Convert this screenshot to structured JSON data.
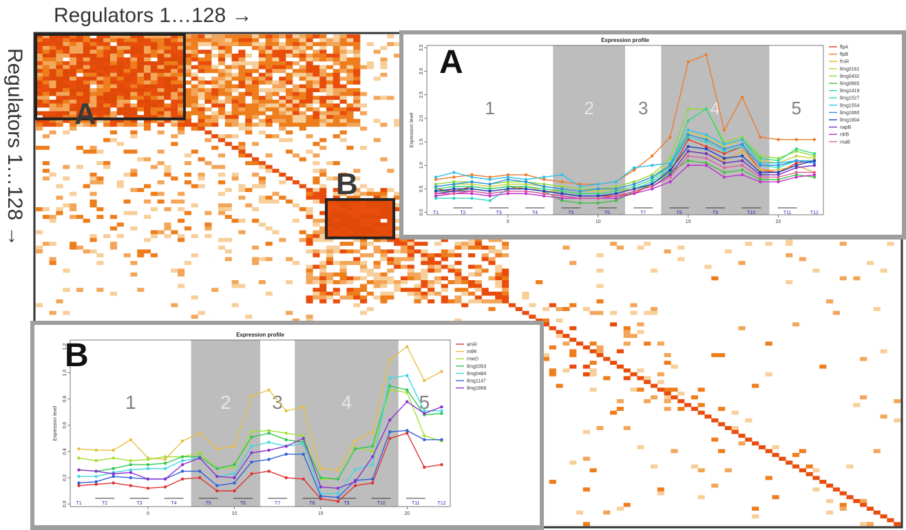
{
  "labels": {
    "top": "Regulators 1…128 →",
    "side": "Regulators 1…128 →"
  },
  "colors": {
    "dark": "#e04a08",
    "red": "#e84d0c",
    "mid": "#ee7d1c",
    "light": "#f3a65a",
    "pale": "#f7cf9a",
    "grid": "#e2e2e2",
    "border": "#333333",
    "frame": "#9e9e9e",
    "shade": "#bdbdbd"
  },
  "chart_data": [
    {
      "type": "heatmap",
      "name": "regulator-matrix",
      "n": 128,
      "blocks": [
        {
          "label": "A",
          "start": 1,
          "end": 22
        },
        {
          "label": "B",
          "start": 44,
          "end": 53
        }
      ]
    },
    {
      "type": "line",
      "label": "A",
      "title": "Expression profile",
      "ylabel": "Expression level",
      "xticks": [
        5,
        10,
        15,
        20
      ],
      "yticks": [
        0.0,
        0.5,
        1.0,
        1.5,
        2.0,
        2.5,
        3.0,
        3.5
      ],
      "xlim": [
        0.5,
        22.5
      ],
      "ylim": [
        -0.05,
        3.55
      ],
      "phases": [
        {
          "label": "1",
          "from": 0.5,
          "to": 7.5,
          "shaded": false
        },
        {
          "label": "2",
          "from": 7.5,
          "to": 11.5,
          "shaded": true
        },
        {
          "label": "3",
          "from": 11.5,
          "to": 13.5,
          "shaded": false
        },
        {
          "label": "4",
          "from": 13.5,
          "to": 19.5,
          "shaded": true
        },
        {
          "label": "5",
          "from": 19.5,
          "to": 22.5,
          "shaded": false
        }
      ],
      "timepoints": [
        {
          "label": "T1",
          "x": 1
        },
        {
          "label": "T2",
          "x": 2.5
        },
        {
          "label": "T3",
          "x": 4.5
        },
        {
          "label": "T4",
          "x": 6.5
        },
        {
          "label": "T5",
          "x": 8.5
        },
        {
          "label": "T6",
          "x": 10.5
        },
        {
          "label": "T7",
          "x": 12.5
        },
        {
          "label": "T8",
          "x": 14.5
        },
        {
          "label": "T9",
          "x": 16.5
        },
        {
          "label": "T10",
          "x": 18.5
        },
        {
          "label": "T11",
          "x": 20.5
        },
        {
          "label": "T12",
          "x": 22
        }
      ],
      "x": [
        1,
        2,
        3,
        4,
        5,
        6,
        7,
        8,
        9,
        10,
        11,
        12,
        13,
        14,
        15,
        16,
        17,
        18,
        19,
        20,
        21,
        22
      ],
      "series": [
        {
          "name": "flpA",
          "color": "#e8352b",
          "values": [
            0.5,
            0.45,
            0.55,
            0.5,
            0.55,
            0.5,
            0.45,
            0.4,
            0.35,
            0.35,
            0.35,
            0.4,
            0.6,
            0.85,
            1.55,
            1.4,
            1.25,
            1.4,
            0.9,
            0.85,
            1.05,
            1.1
          ]
        },
        {
          "name": "flpB",
          "color": "#f07a2a",
          "values": [
            0.7,
            0.75,
            0.8,
            0.75,
            0.8,
            0.8,
            0.7,
            0.65,
            0.6,
            0.6,
            0.65,
            0.9,
            1.2,
            1.6,
            3.2,
            3.35,
            1.75,
            2.45,
            1.6,
            1.55,
            1.55,
            1.55
          ]
        },
        {
          "name": "fruR",
          "color": "#e8b030",
          "values": [
            0.45,
            0.5,
            0.5,
            0.45,
            0.5,
            0.55,
            0.45,
            0.45,
            0.4,
            0.4,
            0.45,
            0.5,
            0.65,
            0.95,
            1.3,
            1.25,
            1.1,
            1.3,
            0.9,
            0.9,
            1.0,
            0.85
          ]
        },
        {
          "name": "llmg0161",
          "color": "#c8d03a",
          "values": [
            0.55,
            0.6,
            0.6,
            0.55,
            0.6,
            0.6,
            0.55,
            0.5,
            0.45,
            0.45,
            0.5,
            0.6,
            0.75,
            1.05,
            1.7,
            1.6,
            1.4,
            1.55,
            1.1,
            1.05,
            1.2,
            1.15
          ]
        },
        {
          "name": "llmg0432",
          "color": "#90d83a",
          "values": [
            0.6,
            0.65,
            0.65,
            0.6,
            0.65,
            0.65,
            0.6,
            0.55,
            0.5,
            0.5,
            0.55,
            0.65,
            0.8,
            1.15,
            2.2,
            2.2,
            1.5,
            1.6,
            1.2,
            1.15,
            1.3,
            1.2
          ]
        },
        {
          "name": "llmg0865",
          "color": "#40c040",
          "values": [
            0.45,
            0.45,
            0.5,
            0.45,
            0.5,
            0.5,
            0.45,
            0.25,
            0.2,
            0.2,
            0.25,
            0.45,
            0.6,
            0.85,
            1.1,
            1.05,
            0.85,
            0.9,
            0.7,
            0.7,
            0.8,
            0.75
          ]
        },
        {
          "name": "llmg1419",
          "color": "#30d880",
          "values": [
            0.5,
            0.55,
            0.55,
            0.5,
            0.55,
            0.55,
            0.5,
            0.45,
            0.4,
            0.4,
            0.45,
            0.55,
            0.7,
            1.0,
            1.95,
            2.2,
            1.45,
            1.55,
            1.15,
            1.1,
            1.35,
            1.25
          ]
        },
        {
          "name": "llmg1527",
          "color": "#30d8c0",
          "values": [
            0.3,
            0.3,
            0.3,
            0.25,
            0.5,
            0.5,
            0.45,
            0.4,
            0.35,
            0.35,
            0.4,
            0.5,
            0.65,
            0.95,
            1.6,
            1.5,
            1.3,
            1.4,
            1.0,
            0.95,
            1.1,
            1.05
          ]
        },
        {
          "name": "llmg1554",
          "color": "#30c0e8",
          "values": [
            0.75,
            0.85,
            0.75,
            0.7,
            0.75,
            0.7,
            0.75,
            0.8,
            0.55,
            0.6,
            0.65,
            0.95,
            1.0,
            1.05,
            1.75,
            1.65,
            1.45,
            1.55,
            1.05,
            1.05,
            1.1,
            1.1
          ]
        },
        {
          "name": "llmg1660",
          "color": "#3090e0",
          "values": [
            0.55,
            0.6,
            0.65,
            0.6,
            0.7,
            0.65,
            0.55,
            0.5,
            0.45,
            0.5,
            0.5,
            0.6,
            0.75,
            1.0,
            1.65,
            1.55,
            1.35,
            1.45,
            1.0,
            1.0,
            1.1,
            1.05
          ]
        },
        {
          "name": "llmg1804",
          "color": "#2040c0",
          "values": [
            0.45,
            0.5,
            0.5,
            0.45,
            0.5,
            0.5,
            0.45,
            0.4,
            0.35,
            0.35,
            0.4,
            0.5,
            0.6,
            0.9,
            1.4,
            1.35,
            1.15,
            1.2,
            0.85,
            0.85,
            1.0,
            1.1
          ]
        },
        {
          "name": "napB",
          "color": "#7030c0",
          "values": [
            0.4,
            0.45,
            0.45,
            0.4,
            0.45,
            0.45,
            0.4,
            0.35,
            0.3,
            0.3,
            0.35,
            0.45,
            0.55,
            0.8,
            1.3,
            1.25,
            1.05,
            1.1,
            0.8,
            0.8,
            0.95,
            1.0
          ]
        },
        {
          "name": "rdrB",
          "color": "#c030d0",
          "values": [
            0.35,
            0.4,
            0.4,
            0.35,
            0.4,
            0.4,
            0.35,
            0.3,
            0.3,
            0.3,
            0.3,
            0.4,
            0.5,
            0.65,
            1.0,
            1.0,
            0.75,
            0.8,
            0.65,
            0.65,
            0.75,
            0.8
          ]
        },
        {
          "name": "rnaB",
          "color": "#e060a0",
          "values": [
            0.4,
            0.4,
            0.45,
            0.4,
            0.45,
            0.45,
            0.4,
            0.35,
            0.3,
            0.3,
            0.35,
            0.45,
            0.55,
            0.75,
            1.2,
            1.15,
            0.95,
            1.0,
            0.75,
            0.75,
            0.85,
            0.85
          ]
        }
      ]
    },
    {
      "type": "line",
      "label": "B",
      "title": "Expression profile",
      "ylabel": "Expression level",
      "xticks": [
        5,
        10,
        15,
        20
      ],
      "yticks": [
        0.0,
        0.2,
        0.4,
        0.6,
        0.8,
        1.0,
        1.2
      ],
      "xlim": [
        0.5,
        22.5
      ],
      "ylim": [
        -0.02,
        1.25
      ],
      "phases": [
        {
          "label": "1",
          "from": 0.5,
          "to": 7.5,
          "shaded": false
        },
        {
          "label": "2",
          "from": 7.5,
          "to": 11.5,
          "shaded": true
        },
        {
          "label": "3",
          "from": 11.5,
          "to": 13.5,
          "shaded": false
        },
        {
          "label": "4",
          "from": 13.5,
          "to": 19.5,
          "shaded": true
        },
        {
          "label": "5",
          "from": 19.5,
          "to": 22.5,
          "shaded": false
        }
      ],
      "timepoints": [
        {
          "label": "T1",
          "x": 1
        },
        {
          "label": "T2",
          "x": 2.5
        },
        {
          "label": "T3",
          "x": 4.5
        },
        {
          "label": "T4",
          "x": 6.5
        },
        {
          "label": "T5",
          "x": 8.5
        },
        {
          "label": "T6",
          "x": 10.5
        },
        {
          "label": "T7",
          "x": 12.5
        },
        {
          "label": "T8",
          "x": 14.5
        },
        {
          "label": "T9",
          "x": 16.5
        },
        {
          "label": "T10",
          "x": 18.5
        },
        {
          "label": "T11",
          "x": 20.5
        },
        {
          "label": "T12",
          "x": 22
        }
      ],
      "x": [
        1,
        2,
        3,
        4,
        5,
        6,
        7,
        8,
        9,
        10,
        11,
        12,
        13,
        14,
        15,
        16,
        17,
        18,
        19,
        20,
        21,
        22
      ],
      "series": [
        {
          "name": "arsR",
          "color": "#e03030",
          "values": [
            0.14,
            0.15,
            0.16,
            0.14,
            0.12,
            0.13,
            0.19,
            0.2,
            0.1,
            0.1,
            0.23,
            0.25,
            0.2,
            0.19,
            0.04,
            0.02,
            0.14,
            0.16,
            0.5,
            0.54,
            0.28,
            0.3
          ]
        },
        {
          "name": "mtlR",
          "color": "#e8c040",
          "values": [
            0.42,
            0.41,
            0.41,
            0.49,
            0.35,
            0.34,
            0.48,
            0.54,
            0.42,
            0.44,
            0.82,
            0.87,
            0.71,
            0.74,
            0.27,
            0.26,
            0.48,
            0.55,
            1.1,
            1.2,
            0.94,
            1.01
          ]
        },
        {
          "name": "rmeD",
          "color": "#a0e030",
          "values": [
            0.35,
            0.33,
            0.35,
            0.33,
            0.34,
            0.36,
            0.36,
            0.39,
            0.27,
            0.28,
            0.55,
            0.56,
            0.54,
            0.52,
            0.19,
            0.19,
            0.43,
            0.4,
            0.87,
            0.85,
            0.52,
            0.48
          ]
        },
        {
          "name": "llmg0353",
          "color": "#30c850",
          "values": [
            0.26,
            0.25,
            0.27,
            0.3,
            0.3,
            0.31,
            0.36,
            0.36,
            0.27,
            0.3,
            0.51,
            0.54,
            0.49,
            0.47,
            0.2,
            0.19,
            0.42,
            0.44,
            0.9,
            0.87,
            0.68,
            0.69
          ]
        },
        {
          "name": "llmg0484",
          "color": "#40d8e0",
          "values": [
            0.21,
            0.21,
            0.24,
            0.26,
            0.27,
            0.27,
            0.33,
            0.35,
            0.21,
            0.23,
            0.44,
            0.47,
            0.44,
            0.46,
            0.08,
            0.08,
            0.26,
            0.3,
            0.96,
            0.98,
            0.71,
            0.71
          ]
        },
        {
          "name": "llmg1147",
          "color": "#3060d8",
          "values": [
            0.16,
            0.17,
            0.21,
            0.2,
            0.19,
            0.19,
            0.25,
            0.25,
            0.14,
            0.16,
            0.32,
            0.34,
            0.38,
            0.38,
            0.06,
            0.05,
            0.18,
            0.19,
            0.55,
            0.56,
            0.49,
            0.49
          ]
        },
        {
          "name": "llmg1868",
          "color": "#8a30d0",
          "values": [
            0.26,
            0.25,
            0.23,
            0.24,
            0.19,
            0.19,
            0.3,
            0.35,
            0.21,
            0.2,
            0.39,
            0.41,
            0.44,
            0.5,
            0.13,
            0.12,
            0.17,
            0.36,
            0.64,
            0.78,
            0.69,
            0.74
          ]
        }
      ]
    }
  ]
}
